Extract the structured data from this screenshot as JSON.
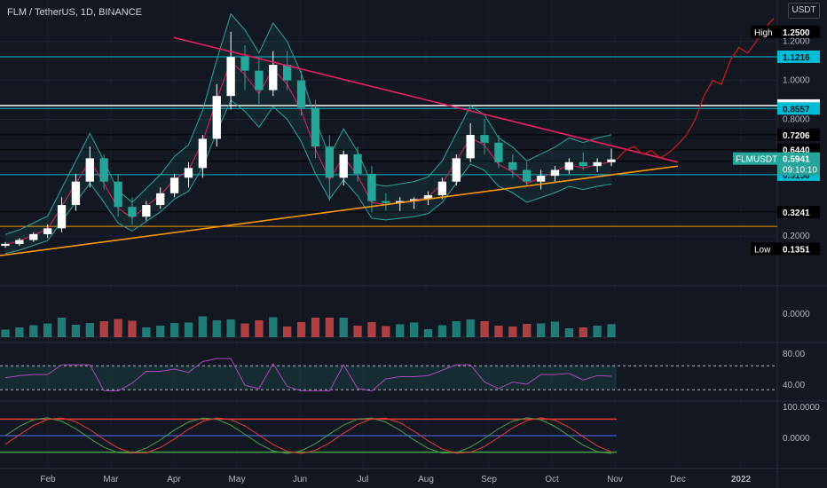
{
  "header": {
    "title": "FLM / TetherUS, 1D, BINANCE"
  },
  "axis": {
    "unit": "USDT"
  },
  "chart_data": {
    "type": "candlestick",
    "symbol": "FLMUSDT",
    "ylim": [
      0.0,
      1.3
    ],
    "price_ticks": [
      "1.2000",
      "1.0000",
      "0.8000",
      "0.2000"
    ],
    "time_ticks": [
      "Feb",
      "Mar",
      "Apr",
      "May",
      "Jun",
      "Jul",
      "Aug",
      "Sep",
      "Oct",
      "Nov",
      "Dec",
      "2022"
    ],
    "series": [
      {
        "name": "FLMUSDT",
        "points": [
          [
            0.15,
            0.17,
            0.14,
            0.16
          ],
          [
            0.16,
            0.19,
            0.15,
            0.18
          ],
          [
            0.18,
            0.22,
            0.17,
            0.21
          ],
          [
            0.21,
            0.26,
            0.19,
            0.24
          ],
          [
            0.24,
            0.4,
            0.22,
            0.36
          ],
          [
            0.36,
            0.52,
            0.33,
            0.48
          ],
          [
            0.48,
            0.66,
            0.45,
            0.6
          ],
          [
            0.6,
            0.62,
            0.44,
            0.48
          ],
          [
            0.48,
            0.52,
            0.3,
            0.35
          ],
          [
            0.35,
            0.4,
            0.26,
            0.3
          ],
          [
            0.3,
            0.38,
            0.28,
            0.36
          ],
          [
            0.36,
            0.45,
            0.34,
            0.42
          ],
          [
            0.42,
            0.52,
            0.4,
            0.5
          ],
          [
            0.5,
            0.58,
            0.45,
            0.55
          ],
          [
            0.55,
            0.72,
            0.5,
            0.7
          ],
          [
            0.7,
            0.98,
            0.66,
            0.92
          ],
          [
            0.92,
            1.25,
            0.85,
            1.12
          ],
          [
            1.12,
            1.18,
            0.95,
            1.05
          ],
          [
            1.05,
            1.12,
            0.88,
            0.95
          ],
          [
            0.95,
            1.15,
            0.92,
            1.08
          ],
          [
            1.08,
            1.15,
            0.95,
            1.0
          ],
          [
            1.0,
            1.05,
            0.82,
            0.86
          ],
          [
            0.86,
            0.9,
            0.6,
            0.66
          ],
          [
            0.66,
            0.72,
            0.38,
            0.5
          ],
          [
            0.5,
            0.64,
            0.46,
            0.62
          ],
          [
            0.62,
            0.66,
            0.48,
            0.52
          ],
          [
            0.52,
            0.56,
            0.32,
            0.38
          ],
          [
            0.38,
            0.42,
            0.33,
            0.37
          ],
          [
            0.37,
            0.4,
            0.33,
            0.38
          ],
          [
            0.38,
            0.4,
            0.34,
            0.39
          ],
          [
            0.39,
            0.43,
            0.36,
            0.41
          ],
          [
            0.41,
            0.5,
            0.39,
            0.48
          ],
          [
            0.48,
            0.62,
            0.46,
            0.6
          ],
          [
            0.6,
            0.78,
            0.58,
            0.72
          ],
          [
            0.72,
            0.8,
            0.62,
            0.68
          ],
          [
            0.68,
            0.72,
            0.55,
            0.58
          ],
          [
            0.58,
            0.62,
            0.5,
            0.54
          ],
          [
            0.54,
            0.58,
            0.46,
            0.48
          ],
          [
            0.48,
            0.54,
            0.44,
            0.51
          ],
          [
            0.51,
            0.56,
            0.48,
            0.54
          ],
          [
            0.54,
            0.6,
            0.52,
            0.58
          ],
          [
            0.58,
            0.63,
            0.54,
            0.56
          ],
          [
            0.56,
            0.6,
            0.53,
            0.58
          ],
          [
            0.58,
            0.65,
            0.56,
            0.5941
          ]
        ]
      }
    ],
    "projection_y": [
      0.5941,
      0.64,
      0.66,
      0.62,
      0.64,
      0.6,
      0.63,
      0.67,
      0.72,
      0.8,
      0.92,
      1.0,
      0.98,
      1.1,
      1.17,
      1.14,
      1.2,
      1.27,
      1.32
    ],
    "overlays": [
      "Bollinger Bands",
      "Moving average"
    ],
    "horizontal_levels": [
      {
        "label": "1.1216",
        "value": 1.1216,
        "color": "#00bcd4",
        "style": "box"
      },
      {
        "label": "0.8709",
        "value": 0.8709,
        "color": "#ffffff",
        "style": "box"
      },
      {
        "label": "0.8557",
        "value": 0.8557,
        "color": "#00bcd4",
        "style": "box"
      },
      {
        "label": "0.7206",
        "value": 0.7206,
        "color": "#000000",
        "style": "box"
      },
      {
        "label": "0.6440",
        "value": 0.644,
        "color": "#000000",
        "style": "box"
      },
      {
        "label": "0.5846",
        "value": 0.5846,
        "color": "#000000",
        "style": "box"
      },
      {
        "label": "0.5156",
        "value": 0.5156,
        "color": "#00bcd4",
        "style": "box"
      },
      {
        "label": "0.3241",
        "value": 0.3241,
        "color": "#000000",
        "style": "box"
      },
      {
        "label": "0.2500",
        "value": 0.25,
        "color": "#ff9800",
        "style": "line"
      }
    ],
    "markers": {
      "high": {
        "label": "High",
        "value": "1.2500"
      },
      "low": {
        "label": "Low",
        "value": "0.1351"
      },
      "current": {
        "label": "FLMUSDT",
        "value": "0.5941",
        "countdown": "09:10:10"
      }
    },
    "trendlines": [
      {
        "name": "resistance",
        "color": "#e91e63",
        "from": [
          "Apr",
          1.22
        ],
        "to": [
          "Dec",
          0.58
        ]
      },
      {
        "name": "support",
        "color": "#ff9800",
        "from": [
          "Jan",
          0.1
        ],
        "to": [
          "Dec",
          0.56
        ]
      }
    ],
    "volume": {
      "tick": "0.0000"
    },
    "rsi": {
      "ticks": [
        "80.00",
        "40.00"
      ]
    },
    "oscillator": {
      "ticks": [
        "100.0000",
        "0.0000"
      ]
    }
  }
}
